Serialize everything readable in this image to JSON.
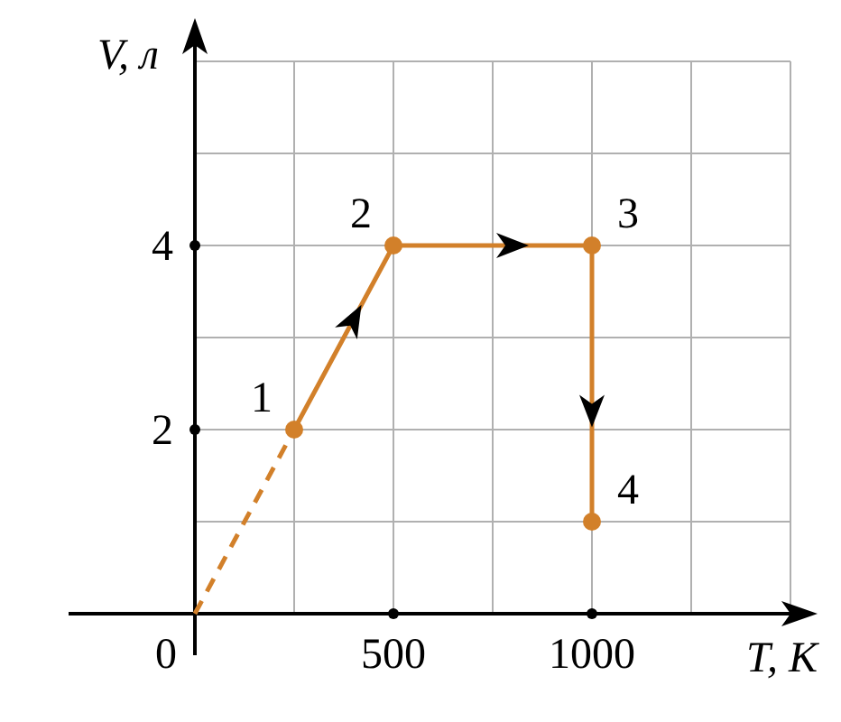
{
  "chart_data": {
    "type": "line",
    "xlabel": "T, К",
    "ylabel": "V, л",
    "series": [
      {
        "x": [
          0,
          250
        ],
        "values": [
          0,
          2
        ],
        "color": "#d2802a",
        "line_style": "dashed"
      },
      {
        "x": [
          250,
          500,
          1000,
          1000
        ],
        "values": [
          2,
          4,
          4,
          1
        ],
        "color": "#d2802a",
        "line_style": "solid",
        "marker": "circle"
      }
    ],
    "xlim": [
      0,
      1500
    ],
    "ylim": [
      0,
      6
    ],
    "xticks": [
      0,
      500,
      1000
    ],
    "yticks": [
      2,
      4
    ],
    "grid": true,
    "annotations": [
      {
        "text": "1",
        "x": 250,
        "y": 2
      },
      {
        "text": "2",
        "x": 500,
        "y": 4
      },
      {
        "text": "3",
        "x": 1000,
        "y": 4
      },
      {
        "text": "4",
        "x": 1000,
        "y": 1
      }
    ]
  }
}
